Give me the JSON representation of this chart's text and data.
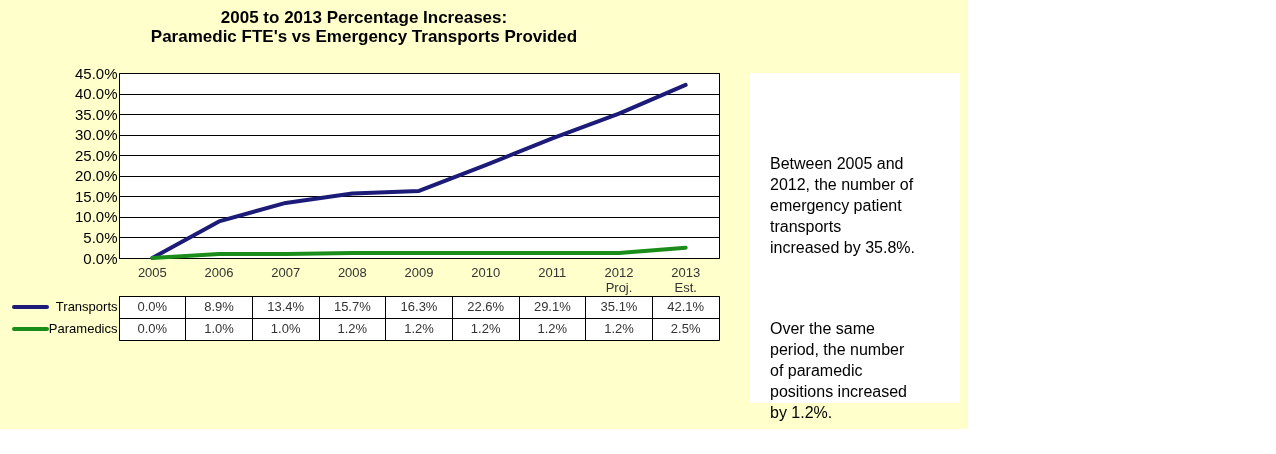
{
  "chart_data": {
    "type": "line",
    "title": "2005 to 2013 Percentage Increases:\nParamedic FTE's vs Emergency Transports Provided",
    "categories": [
      "2005",
      "2006",
      "2007",
      "2008",
      "2009",
      "2010",
      "2011",
      "2012 Proj.",
      "2013 Est."
    ],
    "series": [
      {
        "name": "Transports",
        "color": "#1c1c78",
        "values": [
          0.0,
          8.9,
          13.4,
          15.7,
          16.3,
          22.6,
          29.1,
          35.1,
          42.1
        ],
        "value_labels": [
          "0.0%",
          "8.9%",
          "13.4%",
          "15.7%",
          "16.3%",
          "22.6%",
          "29.1%",
          "35.1%",
          "42.1%"
        ]
      },
      {
        "name": "Paramedics",
        "color": "#1a8c1a",
        "values": [
          0.0,
          1.0,
          1.0,
          1.2,
          1.2,
          1.2,
          1.2,
          1.2,
          2.5
        ],
        "value_labels": [
          "0.0%",
          "1.0%",
          "1.0%",
          "1.2%",
          "1.2%",
          "1.2%",
          "1.2%",
          "1.2%",
          "2.5%"
        ]
      }
    ],
    "ylim": [
      0,
      45
    ],
    "yticks": [
      {
        "value": 0,
        "label": "0.0%"
      },
      {
        "value": 5,
        "label": "5.0%"
      },
      {
        "value": 10,
        "label": "10.0%"
      },
      {
        "value": 15,
        "label": "15.0%"
      },
      {
        "value": 20,
        "label": "20.0%"
      },
      {
        "value": 25,
        "label": "25.0%"
      },
      {
        "value": 30,
        "label": "30.0%"
      },
      {
        "value": 35,
        "label": "35.0%"
      },
      {
        "value": 40,
        "label": "40.0%"
      },
      {
        "value": 45,
        "label": "45.0%"
      }
    ],
    "grid": "y",
    "legend": "bottom",
    "marker": "none",
    "line_style": "solid",
    "annotations": [
      "Between 2005 and 2012, the number of emergency patient transports increased by 35.8%.",
      "Over the same period, the number of paramedic positions increased by 1.2%."
    ]
  }
}
